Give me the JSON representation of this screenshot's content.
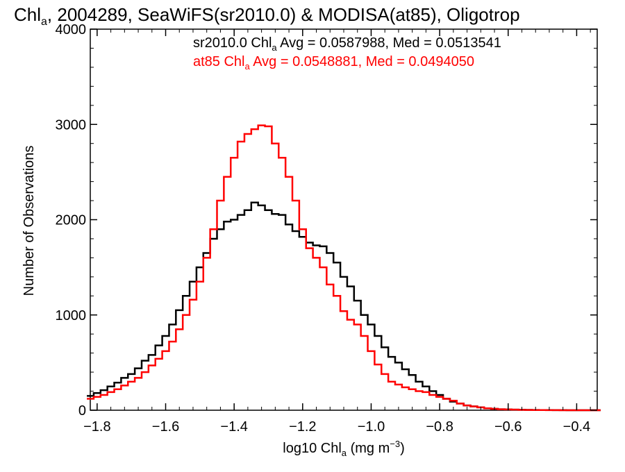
{
  "chart_data": {
    "type": "line",
    "title": {
      "prefix": "Chl",
      "sub": "a",
      "rest": ", 2004289, SeaWiFS(sr2010.0) & MODISA(at85), Oligotrop"
    },
    "xlabel": {
      "prefix": "log10 Chl",
      "sub": "a",
      "mid": " (mg m",
      "sup": "−3",
      "suffix": ")"
    },
    "ylabel": "Number of Observations",
    "xlim": [
      -1.82,
      -0.34
    ],
    "ylim": [
      0,
      4000
    ],
    "x_ticks": [
      -1.8,
      -1.6,
      -1.4,
      -1.2,
      -1.0,
      -0.8,
      -0.6,
      -0.4
    ],
    "x_tick_labels": [
      "−1.8",
      "−1.6",
      "−1.4",
      "−1.2",
      "−1.0",
      "−0.8",
      "−0.6",
      "−0.4"
    ],
    "y_ticks": [
      0,
      1000,
      2000,
      3000,
      4000
    ],
    "y_tick_labels": [
      "0",
      "1000",
      "2000",
      "3000",
      "4000"
    ],
    "grid": false,
    "series": [
      {
        "name_prefix": "sr2010.0 Chl",
        "name_sub": "a",
        "name_suffix": " Avg = 0.0587988, Med = 0.0513541",
        "color": "#000000",
        "x": [
          -1.82,
          -1.8,
          -1.78,
          -1.76,
          -1.74,
          -1.72,
          -1.7,
          -1.68,
          -1.66,
          -1.64,
          -1.62,
          -1.6,
          -1.58,
          -1.56,
          -1.54,
          -1.52,
          -1.5,
          -1.48,
          -1.46,
          -1.44,
          -1.42,
          -1.4,
          -1.38,
          -1.36,
          -1.34,
          -1.32,
          -1.3,
          -1.28,
          -1.26,
          -1.24,
          -1.22,
          -1.2,
          -1.18,
          -1.16,
          -1.14,
          -1.12,
          -1.1,
          -1.08,
          -1.06,
          -1.04,
          -1.02,
          -1.0,
          -0.98,
          -0.96,
          -0.94,
          -0.92,
          -0.9,
          -0.88,
          -0.86,
          -0.84,
          -0.82,
          -0.8,
          -0.78,
          -0.76,
          -0.74,
          -0.72,
          -0.7,
          -0.68,
          -0.66,
          -0.64,
          -0.62,
          -0.6,
          -0.58,
          -0.56,
          -0.54,
          -0.52,
          -0.5,
          -0.48,
          -0.46,
          -0.44,
          -0.42,
          -0.4,
          -0.38,
          -0.36,
          -0.34
        ],
        "y": [
          150,
          180,
          210,
          250,
          290,
          340,
          380,
          440,
          520,
          580,
          680,
          780,
          900,
          1050,
          1200,
          1350,
          1500,
          1650,
          1800,
          1900,
          1980,
          2000,
          2050,
          2100,
          2180,
          2150,
          2100,
          2060,
          2050,
          1950,
          1880,
          1820,
          1760,
          1730,
          1720,
          1650,
          1550,
          1400,
          1300,
          1150,
          1000,
          900,
          780,
          660,
          560,
          500,
          430,
          370,
          300,
          250,
          200,
          160,
          120,
          90,
          70,
          50,
          40,
          30,
          20,
          15,
          10,
          8,
          6,
          5,
          4,
          3,
          2,
          2,
          1,
          1,
          0,
          0,
          0,
          0,
          0
        ]
      },
      {
        "name_prefix": "at85 Chl",
        "name_sub": "a",
        "name_suffix": " Avg = 0.0548881, Med = 0.0494050",
        "color": "#ff0000",
        "x": [
          -1.82,
          -1.8,
          -1.78,
          -1.76,
          -1.74,
          -1.72,
          -1.7,
          -1.68,
          -1.66,
          -1.64,
          -1.62,
          -1.6,
          -1.58,
          -1.56,
          -1.54,
          -1.52,
          -1.5,
          -1.48,
          -1.46,
          -1.44,
          -1.42,
          -1.4,
          -1.38,
          -1.36,
          -1.34,
          -1.32,
          -1.3,
          -1.28,
          -1.26,
          -1.24,
          -1.22,
          -1.2,
          -1.18,
          -1.16,
          -1.14,
          -1.12,
          -1.1,
          -1.08,
          -1.06,
          -1.04,
          -1.02,
          -1.0,
          -0.98,
          -0.96,
          -0.94,
          -0.92,
          -0.9,
          -0.88,
          -0.86,
          -0.84,
          -0.82,
          -0.8,
          -0.78,
          -0.76,
          -0.74,
          -0.72,
          -0.7,
          -0.68,
          -0.66,
          -0.64,
          -0.62,
          -0.6,
          -0.58,
          -0.56,
          -0.54,
          -0.52,
          -0.5,
          -0.48,
          -0.46,
          -0.44,
          -0.42,
          -0.4,
          -0.38,
          -0.36,
          -0.34
        ],
        "y": [
          120,
          140,
          160,
          190,
          220,
          260,
          300,
          340,
          400,
          470,
          540,
          620,
          720,
          850,
          1000,
          1160,
          1350,
          1600,
          1900,
          2200,
          2450,
          2650,
          2820,
          2900,
          2950,
          2990,
          2980,
          2800,
          2650,
          2450,
          2200,
          1900,
          1700,
          1600,
          1500,
          1320,
          1200,
          1040,
          950,
          900,
          780,
          620,
          480,
          380,
          300,
          270,
          240,
          220,
          200,
          190,
          160,
          140,
          120,
          100,
          70,
          50,
          40,
          30,
          20,
          15,
          10,
          8,
          6,
          4,
          3,
          2,
          2,
          1,
          1,
          0,
          0,
          0,
          0,
          0,
          0
        ]
      }
    ]
  }
}
